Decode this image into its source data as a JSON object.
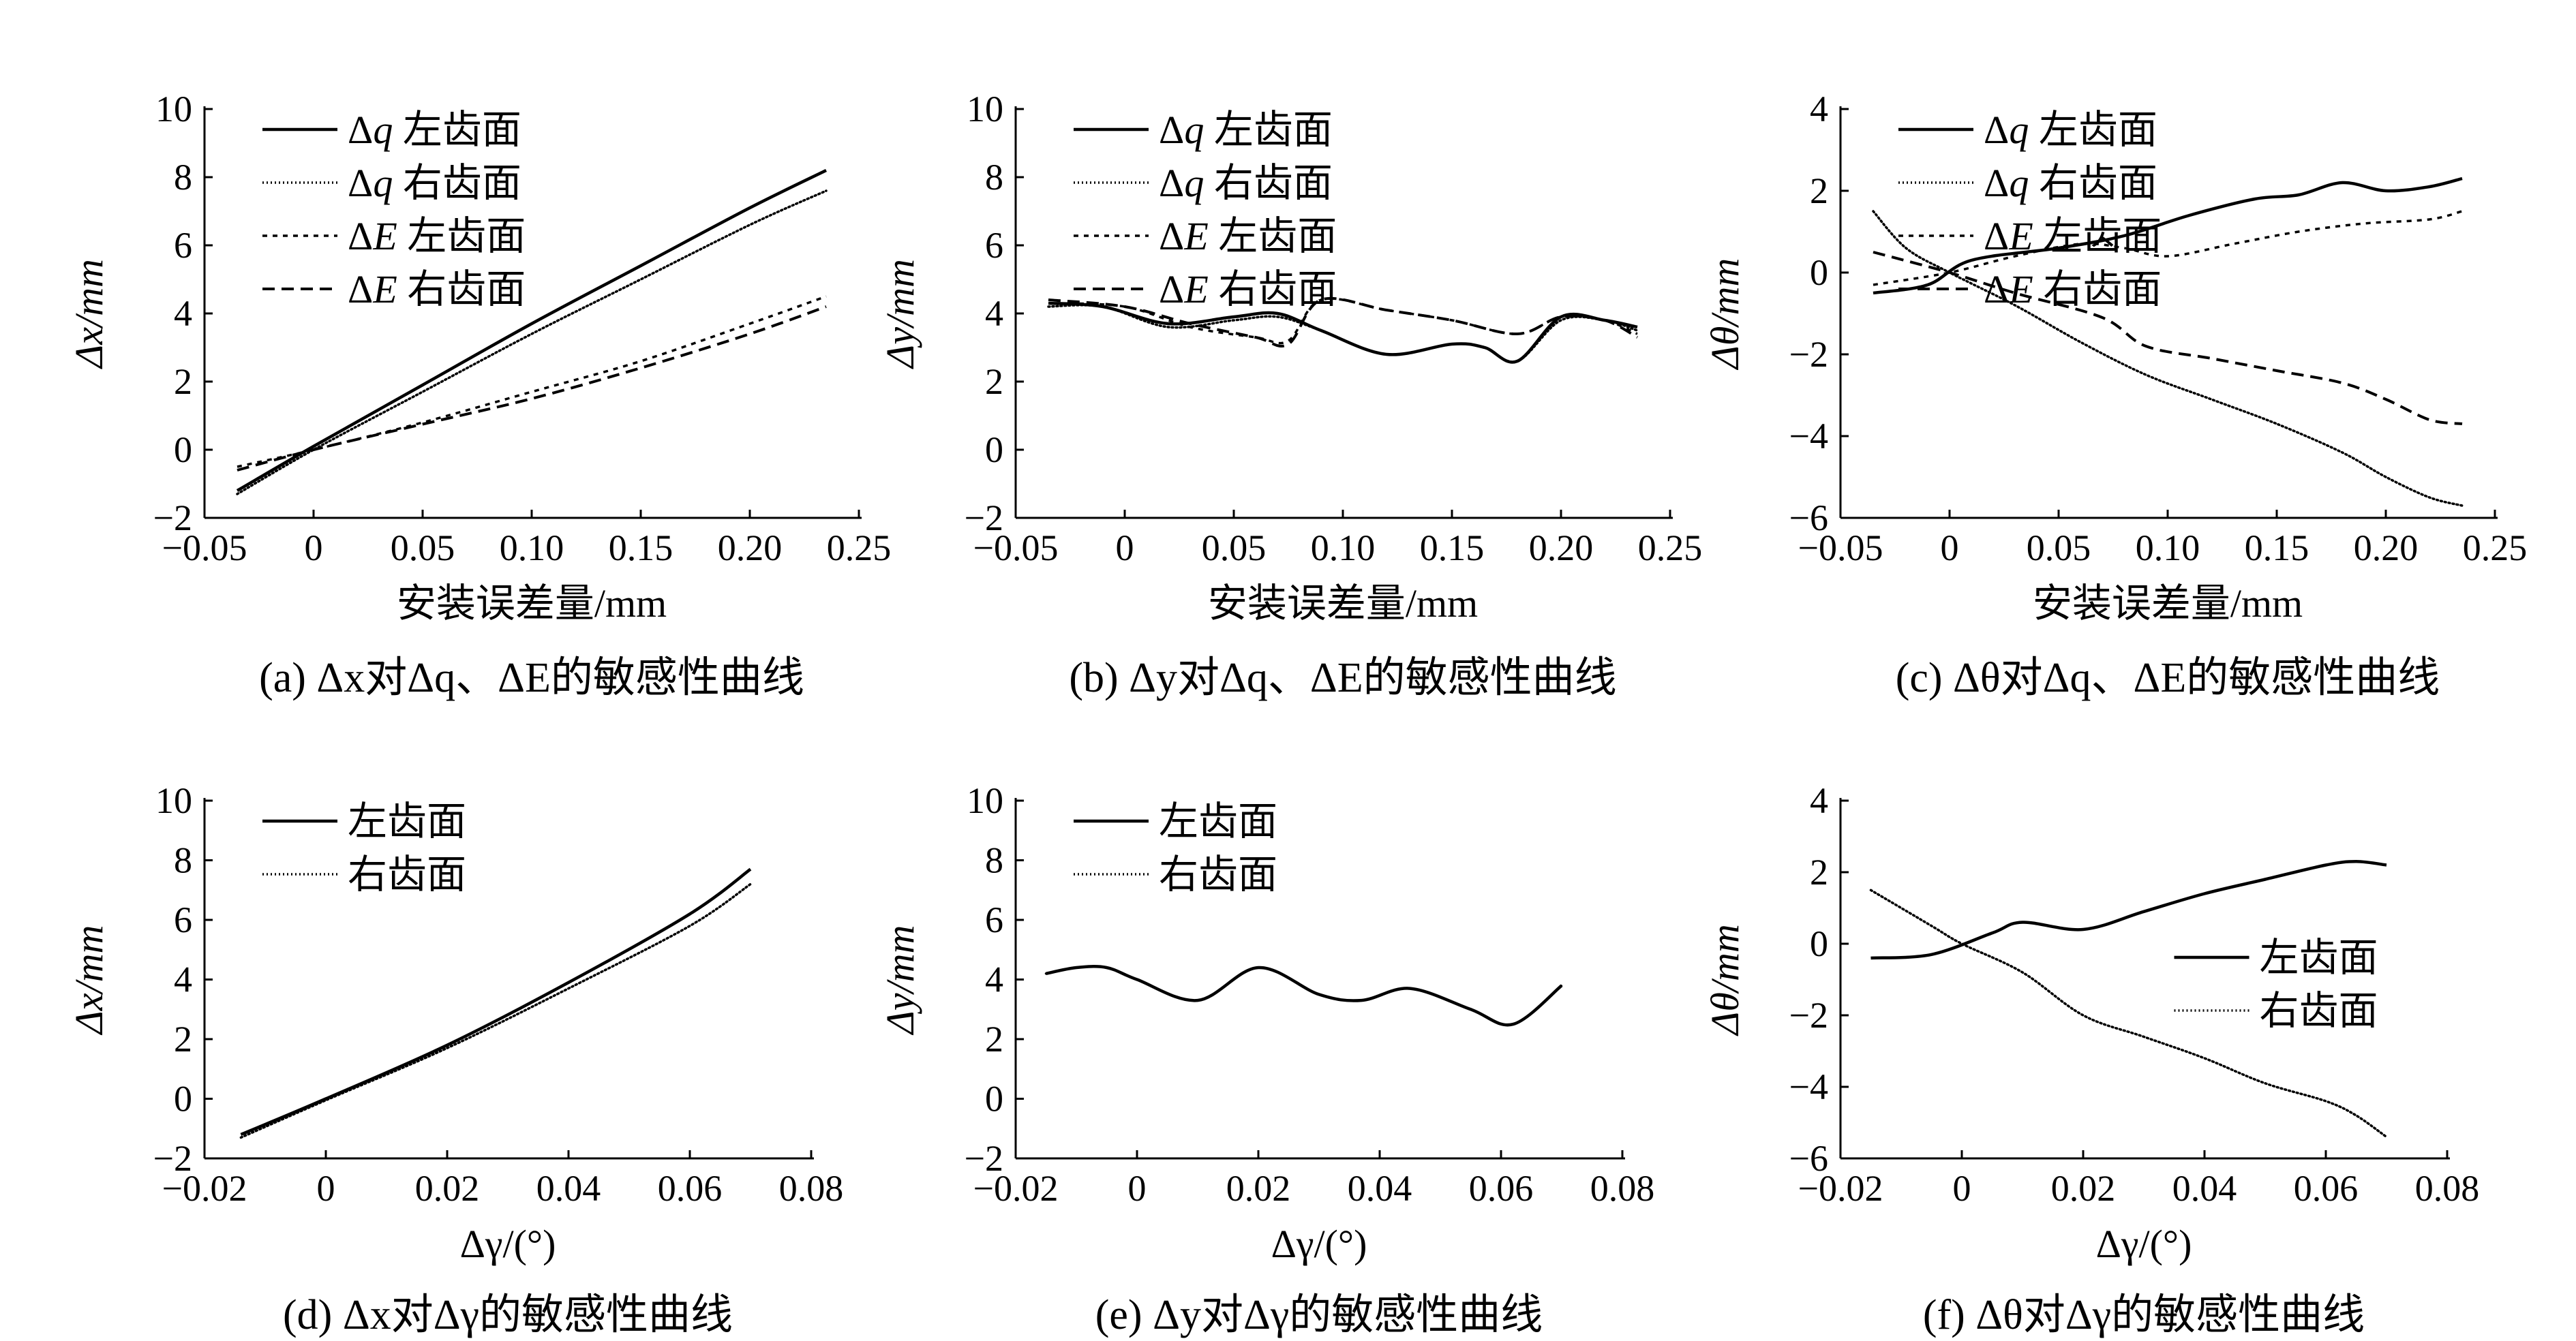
{
  "figure_title": "",
  "chart_data": [
    {
      "id": "a",
      "type": "line",
      "caption": "(a) Δx对Δq、ΔE的敏感性曲线",
      "xlabel": "安装误差量/mm",
      "ylabel": "Δx/mm",
      "xlim": [
        -0.05,
        0.25
      ],
      "ylim": [
        -2,
        10
      ],
      "xticks": [
        -0.05,
        0,
        0.05,
        0.1,
        0.15,
        0.2,
        0.25
      ],
      "xtick_labels": [
        "−0.05",
        "0",
        "0.05",
        "0.10",
        "0.15",
        "0.20",
        "0.25"
      ],
      "yticks": [
        -2,
        0,
        2,
        4,
        6,
        8,
        10
      ],
      "ytick_labels": [
        "−2",
        "0",
        "2",
        "4",
        "6",
        "8",
        "10"
      ],
      "legend_position": "top-left",
      "series": [
        {
          "name": "Δq 左齿面",
          "style": "solid",
          "x": [
            -0.035,
            0,
            0.05,
            0.1,
            0.15,
            0.2,
            0.235
          ],
          "y": [
            -1.2,
            0.1,
            1.9,
            3.7,
            5.4,
            7.1,
            8.2
          ]
        },
        {
          "name": "Δq 右齿面",
          "style": "dotted",
          "x": [
            -0.035,
            0,
            0.05,
            0.1,
            0.15,
            0.2,
            0.235
          ],
          "y": [
            -1.3,
            0.0,
            1.7,
            3.4,
            5.0,
            6.6,
            7.6
          ]
        },
        {
          "name": "ΔE 左齿面",
          "style": "dashed-fine",
          "x": [
            -0.035,
            0,
            0.05,
            0.1,
            0.15,
            0.2,
            0.235
          ],
          "y": [
            -0.5,
            0.0,
            0.8,
            1.7,
            2.6,
            3.7,
            4.5
          ]
        },
        {
          "name": "ΔE 右齿面",
          "style": "dashed",
          "x": [
            -0.035,
            0,
            0.05,
            0.1,
            0.15,
            0.2,
            0.235
          ],
          "y": [
            -0.6,
            0.0,
            0.75,
            1.5,
            2.4,
            3.4,
            4.2
          ]
        }
      ]
    },
    {
      "id": "b",
      "type": "line",
      "caption": "(b) Δy对Δq、ΔE的敏感性曲线",
      "xlabel": "安装误差量/mm",
      "ylabel": "Δy/mm",
      "xlim": [
        -0.05,
        0.25
      ],
      "ylim": [
        -2,
        10
      ],
      "xticks": [
        -0.05,
        0,
        0.05,
        0.1,
        0.15,
        0.2,
        0.25
      ],
      "xtick_labels": [
        "−0.05",
        "0",
        "0.05",
        "0.10",
        "0.15",
        "0.20",
        "0.25"
      ],
      "yticks": [
        -2,
        0,
        2,
        4,
        6,
        8,
        10
      ],
      "ytick_labels": [
        "−2",
        "0",
        "2",
        "4",
        "6",
        "8",
        "10"
      ],
      "legend_position": "top-left",
      "series": [
        {
          "name": "Δq 左齿面",
          "style": "solid",
          "x": [
            -0.035,
            -0.01,
            0.02,
            0.05,
            0.07,
            0.09,
            0.12,
            0.15,
            0.165,
            0.18,
            0.2,
            0.22,
            0.235
          ],
          "y": [
            4.3,
            4.2,
            3.7,
            3.9,
            4.0,
            3.5,
            2.8,
            3.1,
            3.0,
            2.6,
            3.9,
            3.8,
            3.6
          ]
        },
        {
          "name": "Δq 右齿面",
          "style": "dotted",
          "x": [
            -0.035,
            -0.01,
            0.02,
            0.05,
            0.07,
            0.09,
            0.12,
            0.15,
            0.165,
            0.18,
            0.2,
            0.22,
            0.235
          ],
          "y": [
            4.2,
            4.2,
            3.6,
            3.8,
            3.9,
            3.5,
            2.8,
            3.1,
            3.0,
            2.6,
            3.8,
            3.8,
            3.5
          ]
        },
        {
          "name": "ΔE 左齿面",
          "style": "dashed-fine",
          "x": [
            -0.035,
            0,
            0.03,
            0.06,
            0.075,
            0.09,
            0.12,
            0.15,
            0.18,
            0.2,
            0.22,
            0.235
          ],
          "y": [
            4.3,
            4.2,
            3.6,
            3.3,
            3.2,
            4.4,
            4.1,
            3.8,
            3.4,
            3.9,
            3.8,
            3.4
          ]
        },
        {
          "name": "ΔE 右齿面",
          "style": "dashed",
          "x": [
            -0.035,
            0,
            0.03,
            0.06,
            0.075,
            0.09,
            0.12,
            0.15,
            0.18,
            0.2,
            0.22,
            0.235
          ],
          "y": [
            4.4,
            4.2,
            3.7,
            3.3,
            3.1,
            4.4,
            4.1,
            3.8,
            3.4,
            3.9,
            3.8,
            3.3
          ]
        }
      ]
    },
    {
      "id": "c",
      "type": "line",
      "caption": "(c) Δθ对Δq、ΔE的敏感性曲线",
      "xlabel": "安装误差量/mm",
      "ylabel": "Δθ/mm",
      "xlim": [
        -0.05,
        0.25
      ],
      "ylim": [
        -6,
        4
      ],
      "xticks": [
        -0.05,
        0,
        0.05,
        0.1,
        0.15,
        0.2,
        0.25
      ],
      "xtick_labels": [
        "−0.05",
        "0",
        "0.05",
        "0.10",
        "0.15",
        "0.20",
        "0.25"
      ],
      "yticks": [
        -6,
        -4,
        -2,
        0,
        2,
        4
      ],
      "ytick_labels": [
        "−6",
        "−4",
        "−2",
        "0",
        "2",
        "4"
      ],
      "legend_position": "top-left",
      "series": [
        {
          "name": "Δq 左齿面",
          "style": "solid",
          "x": [
            -0.035,
            -0.01,
            0.01,
            0.05,
            0.08,
            0.11,
            0.14,
            0.16,
            0.18,
            0.2,
            0.22,
            0.235
          ],
          "y": [
            -0.5,
            -0.3,
            0.3,
            0.6,
            0.9,
            1.4,
            1.8,
            1.9,
            2.2,
            2.0,
            2.1,
            2.3
          ]
        },
        {
          "name": "Δq 右齿面",
          "style": "dotted",
          "x": [
            -0.035,
            -0.02,
            0,
            0.03,
            0.06,
            0.09,
            0.12,
            0.15,
            0.18,
            0.2,
            0.22,
            0.235
          ],
          "y": [
            1.5,
            0.6,
            0.0,
            -0.8,
            -1.7,
            -2.5,
            -3.1,
            -3.7,
            -4.4,
            -5.0,
            -5.5,
            -5.7
          ]
        },
        {
          "name": "ΔE 左齿面",
          "style": "dashed-fine",
          "x": [
            -0.035,
            0,
            0.03,
            0.06,
            0.08,
            0.1,
            0.13,
            0.16,
            0.19,
            0.22,
            0.235
          ],
          "y": [
            -0.3,
            0.0,
            0.4,
            0.7,
            0.6,
            0.4,
            0.7,
            1.0,
            1.2,
            1.3,
            1.5
          ]
        },
        {
          "name": "ΔE 右齿面",
          "style": "dashed",
          "x": [
            -0.035,
            0,
            0.03,
            0.07,
            0.09,
            0.12,
            0.15,
            0.18,
            0.2,
            0.22,
            0.235
          ],
          "y": [
            0.5,
            0.0,
            -0.5,
            -1.1,
            -1.8,
            -2.1,
            -2.4,
            -2.7,
            -3.1,
            -3.6,
            -3.7
          ]
        }
      ]
    },
    {
      "id": "d",
      "type": "line",
      "caption": "(d) Δx对Δγ的敏感性曲线",
      "xlabel": "Δγ/(°)",
      "ylabel": "Δx/mm",
      "xlim": [
        -0.02,
        0.08
      ],
      "ylim": [
        -2,
        10
      ],
      "xticks": [
        -0.02,
        0,
        0.02,
        0.04,
        0.06,
        0.08
      ],
      "xtick_labels": [
        "−0.02",
        "0",
        "0.02",
        "0.04",
        "0.06",
        "0.08"
      ],
      "yticks": [
        -2,
        0,
        2,
        4,
        6,
        8,
        10
      ],
      "ytick_labels": [
        "−2",
        "0",
        "2",
        "4",
        "6",
        "8",
        "10"
      ],
      "legend_position": "top-left",
      "series": [
        {
          "name": "左齿面",
          "style": "solid",
          "x": [
            -0.014,
            0,
            0.02,
            0.04,
            0.06,
            0.07
          ],
          "y": [
            -1.2,
            0.0,
            1.8,
            3.9,
            6.2,
            7.7
          ]
        },
        {
          "name": "右齿面",
          "style": "dotted",
          "x": [
            -0.014,
            0,
            0.02,
            0.04,
            0.06,
            0.07
          ],
          "y": [
            -1.3,
            -0.05,
            1.7,
            3.7,
            5.8,
            7.2
          ]
        }
      ]
    },
    {
      "id": "e",
      "type": "line",
      "caption": "(e) Δy对Δγ的敏感性曲线",
      "xlabel": "Δγ/(°)",
      "ylabel": "Δy/mm",
      "xlim": [
        -0.02,
        0.08
      ],
      "ylim": [
        -2,
        10
      ],
      "xticks": [
        -0.02,
        0,
        0.02,
        0.04,
        0.06,
        0.08
      ],
      "xtick_labels": [
        "−0.02",
        "0",
        "0.02",
        "0.04",
        "0.06",
        "0.08"
      ],
      "yticks": [
        -2,
        0,
        2,
        4,
        6,
        8,
        10
      ],
      "ytick_labels": [
        "−2",
        "0",
        "2",
        "4",
        "6",
        "8",
        "10"
      ],
      "legend_position": "top-left",
      "series": [
        {
          "name": "左齿面",
          "style": "solid",
          "x": [
            -0.015,
            -0.01,
            -0.005,
            0,
            0.01,
            0.02,
            0.03,
            0.037,
            0.045,
            0.055,
            0.062,
            0.07
          ],
          "y": [
            4.2,
            4.4,
            4.4,
            4.0,
            3.3,
            4.4,
            3.5,
            3.3,
            3.7,
            3.0,
            2.5,
            3.8
          ]
        },
        {
          "name": "右齿面",
          "style": "dotted",
          "x": [
            -0.015,
            -0.01,
            -0.005,
            0,
            0.01,
            0.02,
            0.03,
            0.037,
            0.045,
            0.055,
            0.062,
            0.07
          ],
          "y": [
            4.2,
            4.4,
            4.4,
            4.0,
            3.3,
            4.4,
            3.5,
            3.3,
            3.7,
            3.0,
            2.5,
            3.8
          ]
        }
      ]
    },
    {
      "id": "f",
      "type": "line",
      "caption": "(f) Δθ对Δγ的敏感性曲线",
      "xlabel": "Δγ/(°)",
      "ylabel": "Δθ/mm",
      "xlim": [
        -0.02,
        0.08
      ],
      "ylim": [
        -6,
        4
      ],
      "xticks": [
        -0.02,
        0,
        0.02,
        0.04,
        0.06,
        0.08
      ],
      "xtick_labels": [
        "−0.02",
        "0",
        "0.02",
        "0.04",
        "0.06",
        "0.08"
      ],
      "yticks": [
        -6,
        -4,
        -2,
        0,
        2,
        4
      ],
      "ytick_labels": [
        "−6",
        "−4",
        "−2",
        "0",
        "2",
        "4"
      ],
      "legend_position": "right",
      "series": [
        {
          "name": "左齿面",
          "style": "solid",
          "x": [
            -0.015,
            -0.005,
            0.005,
            0.01,
            0.02,
            0.03,
            0.04,
            0.05,
            0.06,
            0.065,
            0.07
          ],
          "y": [
            -0.4,
            -0.3,
            0.3,
            0.6,
            0.4,
            0.9,
            1.4,
            1.8,
            2.2,
            2.3,
            2.2
          ]
        },
        {
          "name": "右齿面",
          "style": "dotted",
          "x": [
            -0.015,
            -0.005,
            0,
            0.01,
            0.02,
            0.03,
            0.04,
            0.05,
            0.06,
            0.065,
            0.07
          ],
          "y": [
            1.5,
            0.5,
            0.0,
            -0.8,
            -2.0,
            -2.6,
            -3.2,
            -3.9,
            -4.4,
            -4.8,
            -5.4
          ]
        }
      ]
    }
  ]
}
